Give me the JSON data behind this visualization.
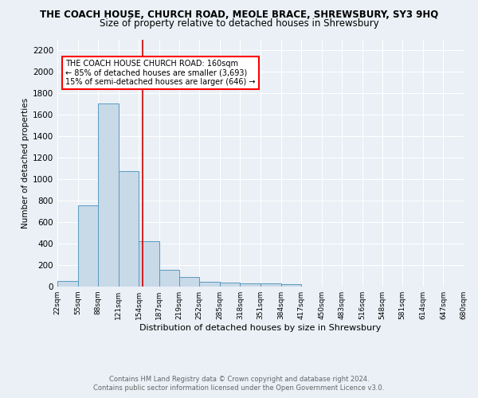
{
  "title": "THE COACH HOUSE, CHURCH ROAD, MEOLE BRACE, SHREWSBURY, SY3 9HQ",
  "subtitle": "Size of property relative to detached houses in Shrewsbury",
  "xlabel": "Distribution of detached houses by size in Shrewsbury",
  "ylabel": "Number of detached properties",
  "bin_edges": [
    22,
    55,
    88,
    121,
    154,
    187,
    219,
    252,
    285,
    318,
    351,
    384,
    417,
    450,
    483,
    516,
    548,
    581,
    614,
    647,
    680
  ],
  "bar_heights": [
    55,
    760,
    1710,
    1075,
    425,
    155,
    88,
    47,
    40,
    28,
    28,
    22,
    0,
    0,
    0,
    0,
    0,
    0,
    0,
    0
  ],
  "bar_color": "#c8d9e8",
  "bar_edge_color": "#5a9abf",
  "property_size": 160,
  "property_label": "THE COACH HOUSE CHURCH ROAD: 160sqm",
  "annotation_line1": "← 85% of detached houses are smaller (3,693)",
  "annotation_line2": "15% of semi-detached houses are larger (646) →",
  "red_line_color": "#cc0000",
  "ylim": [
    0,
    2300
  ],
  "yticks": [
    0,
    200,
    400,
    600,
    800,
    1000,
    1200,
    1400,
    1600,
    1800,
    2000,
    2200
  ],
  "footer1": "Contains HM Land Registry data © Crown copyright and database right 2024.",
  "footer2": "Contains public sector information licensed under the Open Government Licence v3.0.",
  "bg_color": "#eaf0f6",
  "grid_color": "#ffffff",
  "title_fontsize": 8.5,
  "subtitle_fontsize": 8.5
}
